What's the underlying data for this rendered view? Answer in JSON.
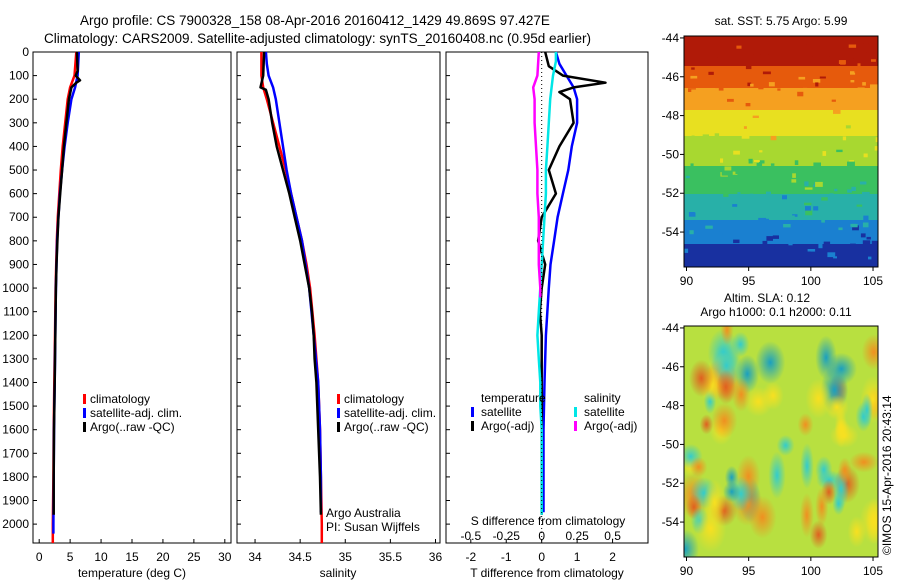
{
  "header": {
    "line1": "Argo profile: CS 7900328_158 08-Apr-2016 20160412_1429 49.869S 97.427E",
    "line2": "Climatology: CARS2009. Satellite-adjusted climatology: synTS_20160408.nc (0.95d earlier)"
  },
  "credits": {
    "org": "Argo Australia",
    "pi": "PI: Susan Wijffels",
    "stamp": "©IMOS 15-Apr-2016 20:43:14"
  },
  "colors": {
    "climatology": "#ff0000",
    "satellite": "#0000ff",
    "argo": "#000000",
    "sat_diff": "#00e6e6",
    "argo_sal": "#ff00ff"
  },
  "chart_data": [
    {
      "type": "line",
      "panel": "temperature",
      "xlabel": "temperature (deg C)",
      "xlim": [
        -1,
        31
      ],
      "ylim": [
        2080,
        0
      ],
      "xticks": [
        0,
        5,
        10,
        15,
        20,
        25,
        30
      ],
      "yticks": [
        0,
        100,
        200,
        300,
        400,
        500,
        600,
        700,
        800,
        900,
        1000,
        1100,
        1200,
        1300,
        1400,
        1500,
        1600,
        1700,
        1800,
        1900,
        2000
      ],
      "legend": [
        "climatology",
        "satellite-adj. clim.",
        "Argo(..raw -QC)"
      ],
      "series": [
        {
          "name": "climatology",
          "color": "#ff0000",
          "depth": [
            0,
            100,
            150,
            200,
            300,
            400,
            500,
            600,
            700,
            800,
            900,
            1000,
            1200,
            1400,
            1600,
            1800,
            2000,
            2080
          ],
          "values": [
            6.0,
            5.7,
            5.0,
            4.6,
            4.2,
            3.8,
            3.5,
            3.25,
            3.0,
            2.85,
            2.75,
            2.65,
            2.55,
            2.45,
            2.35,
            2.3,
            2.2,
            2.2
          ]
        },
        {
          "name": "satellite-adj. clim.",
          "color": "#0000ff",
          "depth": [
            0,
            100,
            150,
            200,
            300,
            400,
            500,
            600,
            700,
            800,
            900,
            1000,
            1200,
            1400,
            1600,
            1800,
            2000,
            2040
          ],
          "values": [
            6.4,
            6.2,
            5.8,
            5.2,
            4.6,
            4.1,
            3.7,
            3.35,
            3.1,
            2.9,
            2.8,
            2.7,
            2.6,
            2.5,
            2.4,
            2.35,
            2.3,
            2.3
          ]
        },
        {
          "name": "Argo(..raw -QC)",
          "color": "#000000",
          "depth": [
            0,
            80,
            100,
            120,
            130,
            150,
            200,
            300,
            400,
            500,
            600,
            700,
            800,
            900,
            1000,
            1200,
            1400,
            1600,
            1800,
            1960
          ],
          "values": [
            6.1,
            6.2,
            5.9,
            6.6,
            6.0,
            5.2,
            4.8,
            4.4,
            4.0,
            3.7,
            3.4,
            3.1,
            2.95,
            2.8,
            2.7,
            2.6,
            2.5,
            2.4,
            2.35,
            2.35
          ]
        }
      ]
    },
    {
      "type": "line",
      "panel": "salinity",
      "xlabel": "salinity",
      "xlim": [
        33.8,
        36.05
      ],
      "ylim": [
        2080,
        0
      ],
      "xticks": [
        34,
        34.5,
        35,
        35.5,
        36
      ],
      "legend": [
        "climatology",
        "satellite-adj. clim.",
        "Argo(..raw -QC)"
      ],
      "series": [
        {
          "name": "climatology",
          "color": "#ff0000",
          "depth": [
            0,
            100,
            150,
            200,
            300,
            400,
            500,
            600,
            700,
            800,
            900,
            1000,
            1200,
            1400,
            1600,
            1800,
            2000,
            2080
          ],
          "values": [
            34.07,
            34.07,
            34.09,
            34.13,
            34.2,
            34.27,
            34.34,
            34.4,
            34.46,
            34.52,
            34.57,
            34.61,
            34.66,
            34.7,
            34.72,
            34.73,
            34.74,
            34.74
          ]
        },
        {
          "name": "satellite-adj. clim.",
          "color": "#0000ff",
          "depth": [
            0,
            50,
            100,
            150,
            200,
            300,
            400,
            500,
            600,
            700,
            800,
            900,
            1000,
            1200,
            1400,
            1600,
            1800,
            1950
          ],
          "values": [
            34.12,
            34.13,
            34.15,
            34.2,
            34.23,
            34.27,
            34.31,
            34.35,
            34.4,
            34.46,
            34.52,
            34.56,
            34.6,
            34.65,
            34.7,
            34.72,
            34.73,
            34.73
          ]
        },
        {
          "name": "Argo(..raw -QC)",
          "color": "#000000",
          "depth": [
            0,
            100,
            150,
            160,
            200,
            300,
            400,
            500,
            600,
            700,
            800,
            900,
            1000,
            1100,
            1200,
            1300,
            1400,
            1600,
            1800,
            1960
          ],
          "values": [
            34.1,
            34.09,
            34.06,
            34.12,
            34.15,
            34.19,
            34.24,
            34.31,
            34.38,
            34.44,
            34.5,
            34.55,
            34.6,
            34.63,
            34.65,
            34.66,
            34.68,
            34.7,
            34.72,
            34.73
          ]
        }
      ]
    },
    {
      "type": "line",
      "panel": "difference",
      "xlabel": "T difference from climatology",
      "xlabel2": "S difference from climatology",
      "xlim": [
        -2.7,
        3.0
      ],
      "ylim": [
        2080,
        0
      ],
      "xticks": [
        -2,
        -1,
        0,
        1,
        2
      ],
      "xticks2": [
        "-0.5",
        "-0.25",
        "0",
        "0.25",
        "0.5"
      ],
      "legend_titles": [
        "temperature",
        "salinity"
      ],
      "legend": [
        "satellite",
        "Argo(-adj)",
        "satellite",
        "Argo(-adj)"
      ],
      "series": [
        {
          "name": "satellite",
          "color": "#0000ff",
          "depth": [
            0,
            50,
            100,
            150,
            200,
            300,
            400,
            500,
            600,
            700,
            800,
            900,
            1000,
            1200,
            1400,
            1600,
            1800,
            1950
          ],
          "values": [
            0.4,
            0.5,
            0.7,
            0.9,
            1.0,
            1.0,
            0.85,
            0.75,
            0.6,
            0.45,
            0.35,
            0.25,
            0.2,
            0.12,
            0.08,
            0.05,
            0.05,
            0.05
          ]
        },
        {
          "name": "Argo(-adj)",
          "color": "#000000",
          "depth": [
            0,
            60,
            100,
            130,
            150,
            170,
            200,
            300,
            400,
            500,
            600,
            700,
            800,
            900,
            1000,
            1100,
            1200,
            1300,
            1500,
            1700,
            1960
          ],
          "values": [
            0.1,
            0.2,
            0.6,
            1.8,
            0.9,
            0.5,
            0.8,
            0.9,
            0.5,
            0.2,
            0.4,
            0.0,
            -0.1,
            0.1,
            0.0,
            -0.05,
            0.0,
            0.0,
            0.0,
            0.0,
            0.0
          ]
        },
        {
          "name": "satellite",
          "color": "#00e6e6",
          "depth": [
            0,
            40,
            100,
            150,
            200,
            300,
            400,
            500,
            600,
            700,
            800,
            900,
            1000,
            1100,
            1200,
            1300,
            1400,
            1500,
            1600,
            1800,
            1960
          ],
          "values": [
            0.1,
            0.1,
            0.08,
            0.07,
            0.06,
            0.05,
            0.04,
            0.03,
            0.03,
            0.02,
            0.01,
            0.0,
            -0.01,
            -0.02,
            -0.03,
            -0.02,
            -0.01,
            -0.01,
            0.0,
            0.0,
            0.0
          ]
        },
        {
          "name": "Argo(-adj)",
          "color": "#ff00ff",
          "depth": [
            0,
            100,
            150,
            200,
            300,
            400,
            500,
            600,
            700,
            800,
            900,
            1000,
            1040
          ],
          "values": [
            -0.02,
            -0.03,
            -0.06,
            -0.05,
            -0.05,
            -0.04,
            -0.03,
            -0.03,
            -0.02,
            -0.02,
            -0.02,
            -0.01,
            -0.01
          ]
        }
      ]
    },
    {
      "type": "heatmap",
      "panel": "sst-map",
      "title": "sat. SST: 5.75 Argo: 5.99",
      "xticks": [
        90,
        95,
        100,
        105
      ],
      "yticks": [
        -44,
        -46,
        -48,
        -50,
        -52,
        -54
      ]
    },
    {
      "type": "heatmap",
      "panel": "sla-map",
      "title": "Altim. SLA: 0.12",
      "subtitle": "Argo h1000: 0.1 h2000: 0.11",
      "xticks": [
        90,
        95,
        100,
        105
      ],
      "yticks": [
        -44,
        -46,
        -48,
        -50,
        -52,
        -54
      ]
    }
  ]
}
